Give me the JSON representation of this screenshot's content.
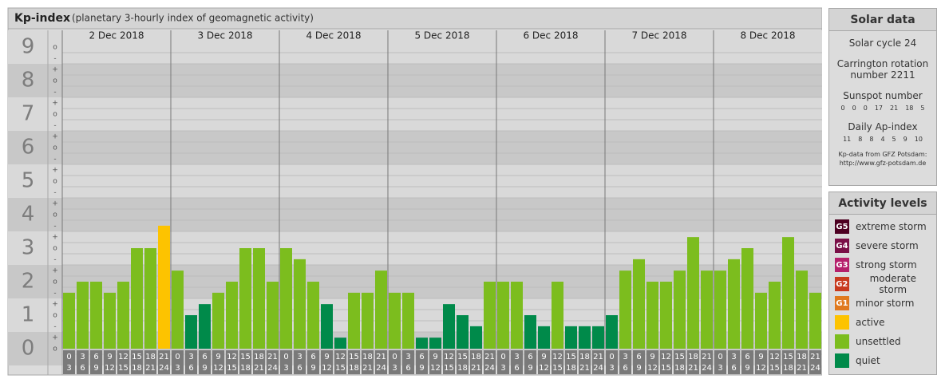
{
  "chart_data": {
    "type": "bar",
    "title": "Kp-index",
    "subtitle": "(planetary 3-hourly index of geomagnetic activity)",
    "hours": [
      {
        "from": "0",
        "to": "3"
      },
      {
        "from": "3",
        "to": "6"
      },
      {
        "from": "6",
        "to": "9"
      },
      {
        "from": "9",
        "to": "12"
      },
      {
        "from": "12",
        "to": "15"
      },
      {
        "from": "15",
        "to": "18"
      },
      {
        "from": "18",
        "to": "21"
      },
      {
        "from": "21",
        "to": "24"
      }
    ],
    "minor_labels": {
      "minus": "-",
      "zero": "o",
      "plus": "+"
    },
    "series": [
      {
        "name": "2 Dec 2018",
        "values": [
          1.67,
          2,
          2,
          1.67,
          2,
          3,
          3,
          3.67
        ],
        "colors": [
          "#7cbd1e",
          "#7cbd1e",
          "#7cbd1e",
          "#7cbd1e",
          "#7cbd1e",
          "#7cbd1e",
          "#7cbd1e",
          "#fdc300"
        ]
      },
      {
        "name": "3 Dec 2018",
        "values": [
          2.33,
          1,
          1.33,
          1.67,
          2,
          3,
          3,
          2
        ],
        "colors": [
          "#7cbd1e",
          "#008a4a",
          "#008a4a",
          "#7cbd1e",
          "#7cbd1e",
          "#7cbd1e",
          "#7cbd1e",
          "#7cbd1e"
        ]
      },
      {
        "name": "4 Dec 2018",
        "values": [
          3,
          2.67,
          2,
          1.33,
          0.33,
          1.67,
          1.67,
          2.33
        ],
        "colors": [
          "#7cbd1e",
          "#7cbd1e",
          "#7cbd1e",
          "#008a4a",
          "#008a4a",
          "#7cbd1e",
          "#7cbd1e",
          "#7cbd1e"
        ]
      },
      {
        "name": "5 Dec 2018",
        "values": [
          1.67,
          1.67,
          0.33,
          0.33,
          1.33,
          1,
          0.67,
          2
        ],
        "colors": [
          "#7cbd1e",
          "#7cbd1e",
          "#008a4a",
          "#008a4a",
          "#008a4a",
          "#008a4a",
          "#008a4a",
          "#7cbd1e"
        ]
      },
      {
        "name": "6 Dec 2018",
        "values": [
          2,
          2,
          1,
          0.67,
          2,
          0.67,
          0.67,
          0.67
        ],
        "colors": [
          "#7cbd1e",
          "#7cbd1e",
          "#008a4a",
          "#008a4a",
          "#7cbd1e",
          "#008a4a",
          "#008a4a",
          "#008a4a"
        ]
      },
      {
        "name": "7 Dec 2018",
        "values": [
          1,
          2.33,
          2.67,
          2,
          2,
          2.33,
          3.33,
          2.33
        ],
        "colors": [
          "#008a4a",
          "#7cbd1e",
          "#7cbd1e",
          "#7cbd1e",
          "#7cbd1e",
          "#7cbd1e",
          "#7cbd1e",
          "#7cbd1e"
        ]
      },
      {
        "name": "8 Dec 2018",
        "values": [
          2.33,
          2.67,
          3,
          1.67,
          2,
          3.33,
          2.33,
          1.67
        ],
        "colors": [
          "#7cbd1e",
          "#7cbd1e",
          "#7cbd1e",
          "#7cbd1e",
          "#7cbd1e",
          "#7cbd1e",
          "#7cbd1e",
          "#7cbd1e"
        ]
      }
    ],
    "ylim": [
      0,
      9.5
    ],
    "yticks": [
      0,
      1,
      2,
      3,
      4,
      5,
      6,
      7,
      8,
      9
    ],
    "band_colors": [
      "#d9d9d9",
      "#c8c8c8"
    ]
  },
  "solar_data": {
    "title": "Solar data",
    "cycle": "Solar cycle 24",
    "carrington": "Carrington rotation number 2211",
    "sunspot_title": "Sunspot number",
    "sunspot_numbers": [
      0,
      0,
      0,
      17,
      21,
      18,
      5
    ],
    "ap_title": "Daily Ap-index",
    "ap_index": [
      11,
      8,
      8,
      4,
      5,
      9,
      10
    ],
    "source": "Kp-data from GFZ Potsdam:",
    "source_url": "http://www.gfz-potsdam.de"
  },
  "activity_levels": {
    "title": "Activity levels",
    "levels": [
      {
        "code": "G5",
        "label": "extreme storm",
        "color": "#4d0021"
      },
      {
        "code": "G4",
        "label": "severe storm",
        "color": "#7a1047"
      },
      {
        "code": "G3",
        "label": "strong storm",
        "color": "#b5206b"
      },
      {
        "code": "G2",
        "label": "moderate storm",
        "color": "#c83a1e"
      },
      {
        "code": "G1",
        "label": "minor storm",
        "color": "#e07a1f"
      },
      {
        "label": "active",
        "color": "#fdc300"
      },
      {
        "label": "unsettled",
        "color": "#7cbd1e"
      },
      {
        "label": "quiet",
        "color": "#008a4a"
      }
    ]
  }
}
